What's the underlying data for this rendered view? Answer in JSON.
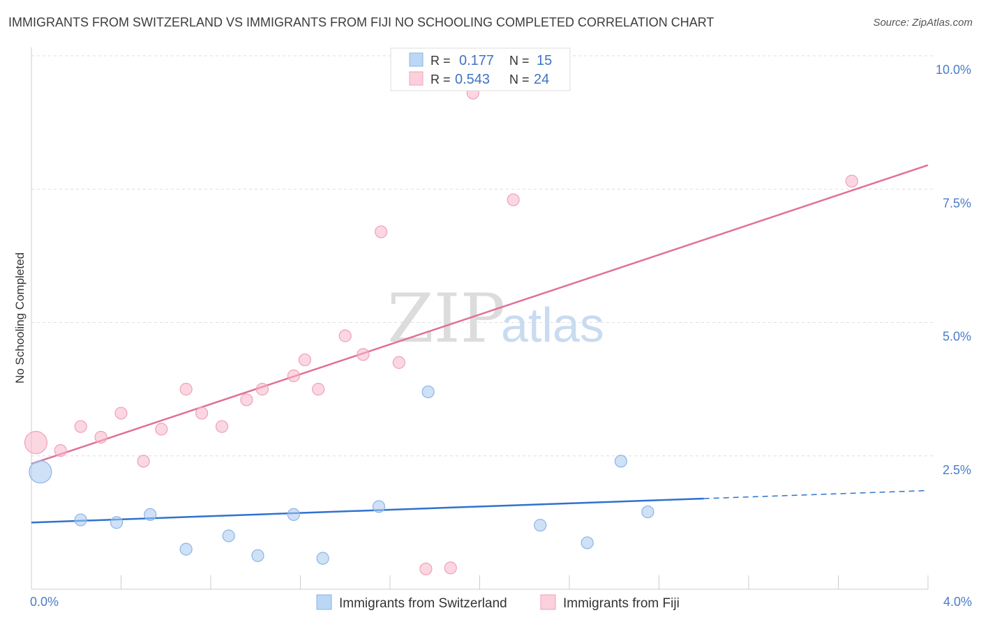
{
  "header": {
    "title": "IMMIGRANTS FROM SWITZERLAND VS IMMIGRANTS FROM FIJI NO SCHOOLING COMPLETED CORRELATION CHART",
    "source": "Source: ZipAtlas.com"
  },
  "watermark": {
    "zip": "ZIP",
    "atlas": "atlas"
  },
  "legend": {
    "r_label": "R =",
    "n_label": "N =",
    "rows": [
      {
        "r": "0.177",
        "n": "15",
        "color": "#a8c8f0"
      },
      {
        "r": "0.543",
        "n": "24",
        "color": "#f7b7c9"
      }
    ]
  },
  "chart_data": {
    "type": "scatter",
    "title": "IMMIGRANTS FROM SWITZERLAND VS IMMIGRANTS FROM FIJI NO SCHOOLING COMPLETED CORRELATION CHART",
    "xlabel": "",
    "ylabel": "No Schooling Completed",
    "xlim": [
      0,
      4.0
    ],
    "ylim": [
      0,
      10.0
    ],
    "x_tick_labels": [
      "0.0%",
      "4.0%"
    ],
    "y_ticks": [
      2.5,
      5.0,
      7.5,
      10.0
    ],
    "y_tick_labels": [
      "2.5%",
      "5.0%",
      "7.5%",
      "10.0%"
    ],
    "grid": true,
    "series": [
      {
        "name": "Immigrants from Switzerland",
        "color": "#a8c8f0",
        "line_color": "#2f72cf",
        "points": [
          {
            "x": 0.04,
            "y": 2.2,
            "big": true
          },
          {
            "x": 0.22,
            "y": 1.3
          },
          {
            "x": 0.38,
            "y": 1.25
          },
          {
            "x": 0.53,
            "y": 1.4
          },
          {
            "x": 0.69,
            "y": 0.75
          },
          {
            "x": 0.88,
            "y": 1.0
          },
          {
            "x": 1.01,
            "y": 0.63
          },
          {
            "x": 1.17,
            "y": 1.4
          },
          {
            "x": 1.3,
            "y": 0.58
          },
          {
            "x": 1.55,
            "y": 1.55
          },
          {
            "x": 1.77,
            "y": 3.7
          },
          {
            "x": 2.27,
            "y": 1.2
          },
          {
            "x": 2.48,
            "y": 0.87
          },
          {
            "x": 2.63,
            "y": 2.4
          },
          {
            "x": 2.75,
            "y": 1.45
          }
        ],
        "trend": {
          "x0": 0.0,
          "y0": 1.25,
          "x1": 3.0,
          "y1": 1.7,
          "dash_x1": 4.0,
          "dash_y1": 1.85
        }
      },
      {
        "name": "Immigrants from Fiji",
        "color": "#f7b7c9",
        "line_color": "#e07098",
        "points": [
          {
            "x": 0.02,
            "y": 2.75,
            "big": true
          },
          {
            "x": 0.13,
            "y": 2.6
          },
          {
            "x": 0.22,
            "y": 3.05
          },
          {
            "x": 0.31,
            "y": 2.85
          },
          {
            "x": 0.4,
            "y": 3.3
          },
          {
            "x": 0.5,
            "y": 2.4
          },
          {
            "x": 0.58,
            "y": 3.0
          },
          {
            "x": 0.69,
            "y": 3.75
          },
          {
            "x": 0.76,
            "y": 3.3
          },
          {
            "x": 0.85,
            "y": 3.05
          },
          {
            "x": 0.96,
            "y": 3.55
          },
          {
            "x": 1.03,
            "y": 3.75
          },
          {
            "x": 1.17,
            "y": 4.0
          },
          {
            "x": 1.22,
            "y": 4.3
          },
          {
            "x": 1.28,
            "y": 3.75
          },
          {
            "x": 1.4,
            "y": 4.75
          },
          {
            "x": 1.48,
            "y": 4.4
          },
          {
            "x": 1.56,
            "y": 6.7
          },
          {
            "x": 1.64,
            "y": 4.25
          },
          {
            "x": 1.76,
            "y": 0.38
          },
          {
            "x": 1.87,
            "y": 0.4
          },
          {
            "x": 1.97,
            "y": 9.3
          },
          {
            "x": 2.15,
            "y": 7.3
          },
          {
            "x": 3.66,
            "y": 7.65
          }
        ],
        "trend": {
          "x0": 0.0,
          "y0": 2.35,
          "x1": 4.0,
          "y1": 7.95
        }
      }
    ]
  }
}
